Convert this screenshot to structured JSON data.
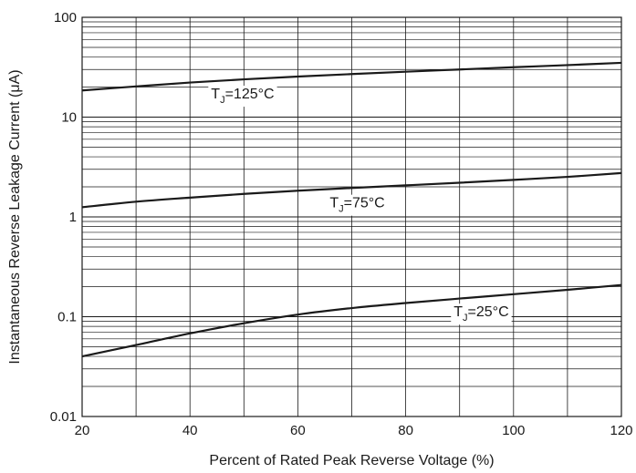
{
  "chart_data": {
    "type": "line",
    "title": "",
    "xlabel": "Percent of Rated Peak Reverse Voltage (%)",
    "ylabel": "Instantaneous Reverse Leakage Current (μA)",
    "xlim": [
      20,
      120
    ],
    "ylim": [
      0.01,
      100
    ],
    "yscale": "log",
    "grid": true,
    "x_ticks": [
      20,
      40,
      60,
      80,
      100,
      120
    ],
    "y_ticks": [
      0.01,
      0.1,
      1,
      10,
      100
    ],
    "y_tick_labels": [
      "0.01",
      "0.1",
      "1",
      "10",
      "100"
    ],
    "series": [
      {
        "name": "TJ=125°C",
        "label_main": "T",
        "label_sub": "J",
        "label_rest": "=125°C",
        "color": "#1a1a1a",
        "x": [
          20,
          30,
          40,
          50,
          60,
          70,
          80,
          90,
          100,
          110,
          120
        ],
        "y": [
          18.5,
          20.3,
          22.2,
          23.9,
          25.5,
          27.0,
          28.5,
          30.0,
          31.6,
          33.2,
          35.0
        ]
      },
      {
        "name": "TJ=75°C",
        "label_main": "T",
        "label_sub": "J",
        "label_rest": "=75°C",
        "color": "#1a1a1a",
        "x": [
          20,
          30,
          40,
          50,
          60,
          70,
          80,
          90,
          100,
          110,
          120
        ],
        "y": [
          1.25,
          1.42,
          1.56,
          1.7,
          1.83,
          1.95,
          2.07,
          2.2,
          2.35,
          2.52,
          2.75
        ]
      },
      {
        "name": "TJ=25°C",
        "label_main": "T",
        "label_sub": "J",
        "label_rest": "=25°C",
        "color": "#1a1a1a",
        "x": [
          20,
          30,
          40,
          50,
          60,
          70,
          80,
          90,
          100,
          110,
          120
        ],
        "y": [
          0.04,
          0.052,
          0.068,
          0.086,
          0.105,
          0.122,
          0.137,
          0.152,
          0.168,
          0.186,
          0.208
        ]
      }
    ]
  }
}
